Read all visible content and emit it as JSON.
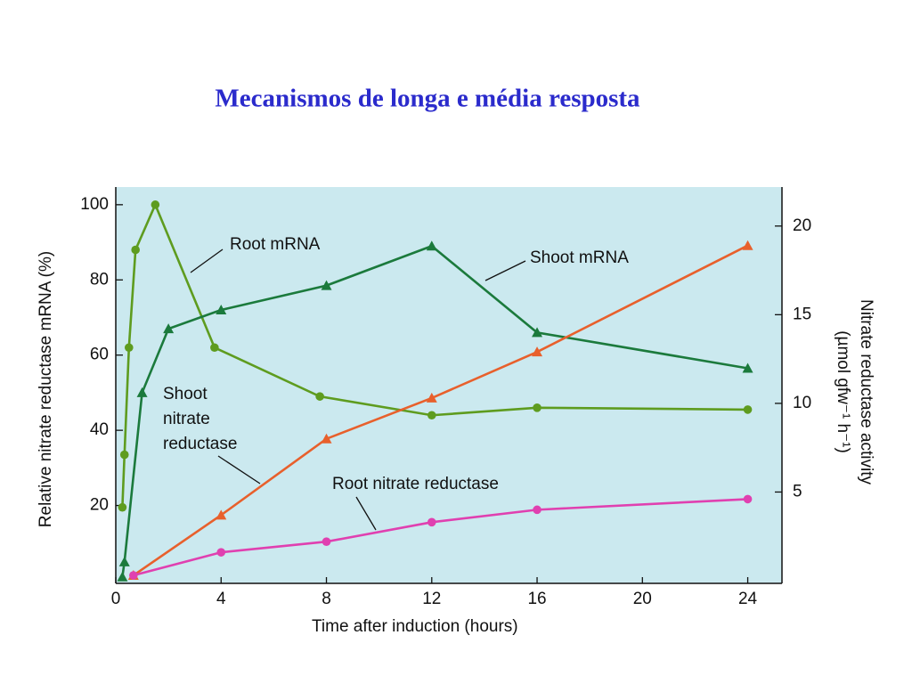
{
  "title": "Mecanismos de longa e média resposta",
  "chart_data": {
    "type": "line",
    "xlabel": "Time after induction (hours)",
    "ylabel": "Relative nitrate reductase mRNA (%)",
    "y2label": [
      "Nitrate reductase activity",
      "(µmol gfw⁻¹ h⁻¹)"
    ],
    "xlim": [
      0,
      25.3
    ],
    "xticks": [
      0,
      4,
      8,
      12,
      16,
      20,
      24
    ],
    "ylim": [
      0,
      104.7
    ],
    "yticks": [
      20,
      40,
      60,
      80,
      100
    ],
    "y2lim": [
      0,
      22.2
    ],
    "y2ticks": [
      5,
      10,
      15,
      20
    ],
    "series": [
      {
        "name": "Root mRNA",
        "color": "#5e9c1f",
        "marker": "circle",
        "x": [
          0.25,
          0.33,
          0.5,
          0.75,
          1.5,
          3.75,
          7.75,
          12,
          16,
          24
        ],
        "values": [
          19.5,
          33.5,
          62,
          88,
          100,
          62,
          49,
          44,
          46,
          45.5
        ]
      },
      {
        "name": "Shoot mRNA",
        "color": "#1b7a3c",
        "marker": "triangle",
        "x": [
          0.25,
          0.33,
          1,
          2,
          4,
          8,
          12,
          16,
          24
        ],
        "values": [
          1,
          5,
          50,
          67,
          72,
          78.5,
          89,
          66,
          56.5
        ]
      },
      {
        "name": "Shoot nitrate reductase",
        "color": "#e8602c",
        "marker": "triangle",
        "axis": "y2",
        "x": [
          0.67,
          4,
          8,
          12,
          16,
          24
        ],
        "values": [
          0.3,
          3.7,
          8,
          10.3,
          12.9,
          18.9
        ]
      },
      {
        "name": "Root nitrate reductase",
        "color": "#e040b0",
        "marker": "circle",
        "axis": "y2",
        "x": [
          0.67,
          4,
          8,
          12,
          16,
          24
        ],
        "values": [
          0.3,
          1.6,
          2.2,
          3.3,
          4,
          4.6
        ]
      }
    ]
  }
}
